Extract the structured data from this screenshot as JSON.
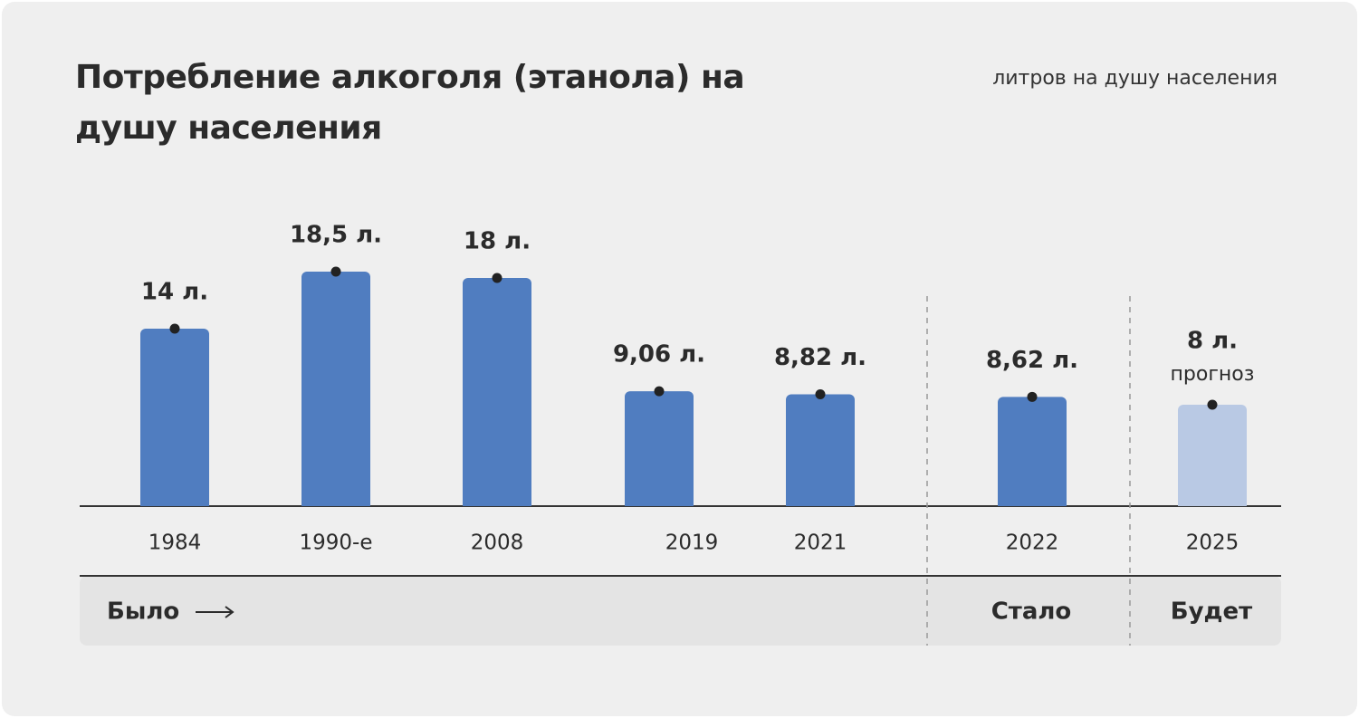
{
  "chart_data": {
    "type": "bar",
    "title": "Потребление алкоголя (этанола) на душу населения",
    "unit": "литров на душу населения",
    "categories": [
      "1984",
      "1990-е",
      "2008",
      "2019",
      "2021",
      "2022",
      "2025"
    ],
    "values": [
      14,
      18.5,
      18,
      9.06,
      8.82,
      8.62,
      8
    ],
    "value_labels": [
      "14 л.",
      "18,5 л.",
      "18 л.",
      "9,06 л.",
      "8,82 л.",
      "8,62 л.",
      "8 л."
    ],
    "notes": [
      null,
      null,
      null,
      null,
      null,
      null,
      "прогноз"
    ],
    "colors": [
      "#507dc0",
      "#507dc0",
      "#507dc0",
      "#507dc0",
      "#507dc0",
      "#507dc0",
      "#b9c9e4"
    ],
    "groups": [
      "Было",
      "Стало",
      "Будет"
    ]
  }
}
